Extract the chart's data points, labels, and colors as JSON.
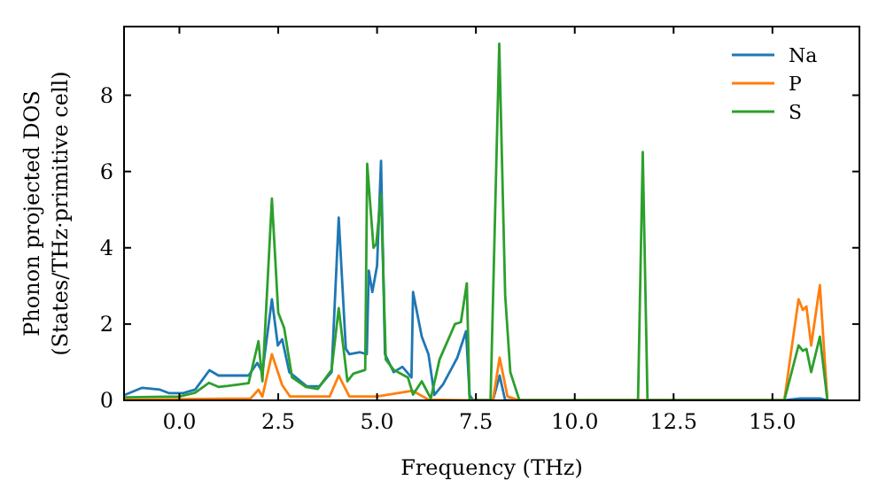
{
  "chart_data": {
    "type": "line",
    "xlabel": "Frequency (THz)",
    "ylabel": "Phonon projected DOS\n(States/THz·primitive cell)",
    "xlim": [
      -1.4,
      17.2
    ],
    "ylim": [
      0,
      9.8
    ],
    "xticks": [
      {
        "value": 0,
        "label": "0.0"
      },
      {
        "value": 2.5,
        "label": "2.5"
      },
      {
        "value": 5,
        "label": "5.0"
      },
      {
        "value": 7.5,
        "label": "7.5"
      },
      {
        "value": 10,
        "label": "10.0"
      },
      {
        "value": 12.5,
        "label": "12.5"
      },
      {
        "value": 15,
        "label": "15.0"
      }
    ],
    "yticks": [
      0,
      2,
      4,
      6,
      8
    ],
    "grid": false,
    "legend": "top right",
    "marker": "none",
    "line_style": "solid",
    "series": [
      {
        "name": "Na",
        "color": "#1f77b4",
        "x": [
          -1.39,
          -0.94,
          -0.49,
          -0.27,
          0.09,
          0.4,
          0.76,
          0.99,
          1.75,
          1.97,
          2.1,
          2.34,
          2.49,
          2.6,
          2.78,
          3.22,
          3.54,
          3.85,
          4.03,
          4.21,
          4.3,
          4.57,
          4.74,
          4.79,
          4.88,
          5.0,
          5.1,
          5.2,
          5.42,
          5.64,
          5.87,
          5.91,
          6.13,
          6.3,
          6.45,
          6.67,
          7.03,
          7.25,
          7.34,
          7.43,
          7.93,
          8.1,
          8.24,
          15.3,
          15.7,
          16.2,
          16.39
        ],
        "values": [
          0.14,
          0.33,
          0.28,
          0.19,
          0.19,
          0.28,
          0.79,
          0.65,
          0.65,
          0.98,
          0.74,
          2.65,
          1.44,
          1.6,
          0.74,
          0.37,
          0.37,
          0.74,
          4.79,
          1.35,
          1.21,
          1.26,
          1.21,
          3.4,
          2.84,
          3.53,
          6.28,
          1.21,
          0.74,
          0.88,
          0.6,
          2.84,
          1.67,
          1.21,
          0.14,
          0.42,
          1.12,
          1.81,
          0.14,
          0,
          0,
          0.65,
          0,
          0,
          0.05,
          0.05,
          0
        ]
      },
      {
        "name": "P",
        "color": "#ff7f0e",
        "x": [
          -1.39,
          1.8,
          2.0,
          2.1,
          2.34,
          2.6,
          2.8,
          3.8,
          4.03,
          4.3,
          5.0,
          5.9,
          6.3,
          7.3,
          7.93,
          8.1,
          8.3,
          8.6,
          15.3,
          15.66,
          15.77,
          15.86,
          15.98,
          16.2,
          16.39
        ],
        "values": [
          0.02,
          0.05,
          0.28,
          0.1,
          1.21,
          0.4,
          0.1,
          0.1,
          0.65,
          0.1,
          0.1,
          0.25,
          0.02,
          0,
          0,
          1.12,
          0.1,
          0,
          0,
          2.65,
          2.37,
          2.46,
          1.44,
          3.02,
          0
        ]
      },
      {
        "name": "S",
        "color": "#2ca02c",
        "x": [
          -1.39,
          0,
          0.4,
          0.75,
          1.0,
          1.75,
          2.0,
          2.1,
          2.34,
          2.5,
          2.65,
          2.85,
          3.2,
          3.5,
          3.85,
          4.03,
          4.25,
          4.4,
          4.7,
          4.75,
          4.91,
          4.98,
          5.1,
          5.22,
          5.42,
          5.78,
          5.91,
          6.13,
          6.36,
          6.58,
          6.97,
          7.12,
          7.27,
          7.34,
          7.87,
          8.09,
          8.24,
          8.37,
          8.6,
          11.6,
          11.72,
          11.84,
          15.3,
          15.66,
          15.77,
          15.86,
          15.98,
          16.2,
          16.39
        ],
        "values": [
          0.08,
          0.1,
          0.2,
          0.46,
          0.35,
          0.45,
          1.55,
          0.5,
          5.29,
          2.3,
          1.9,
          0.6,
          0.35,
          0.3,
          0.8,
          2.42,
          0.5,
          0.7,
          0.8,
          6.2,
          4.0,
          4.1,
          5.4,
          1.07,
          0.8,
          0.6,
          0.15,
          0.5,
          0.05,
          1.07,
          2.0,
          2.05,
          3.07,
          0,
          0,
          9.35,
          2.76,
          0.74,
          0,
          0,
          6.51,
          0,
          0,
          1.44,
          1.3,
          1.35,
          0.74,
          1.67,
          0
        ]
      }
    ]
  }
}
